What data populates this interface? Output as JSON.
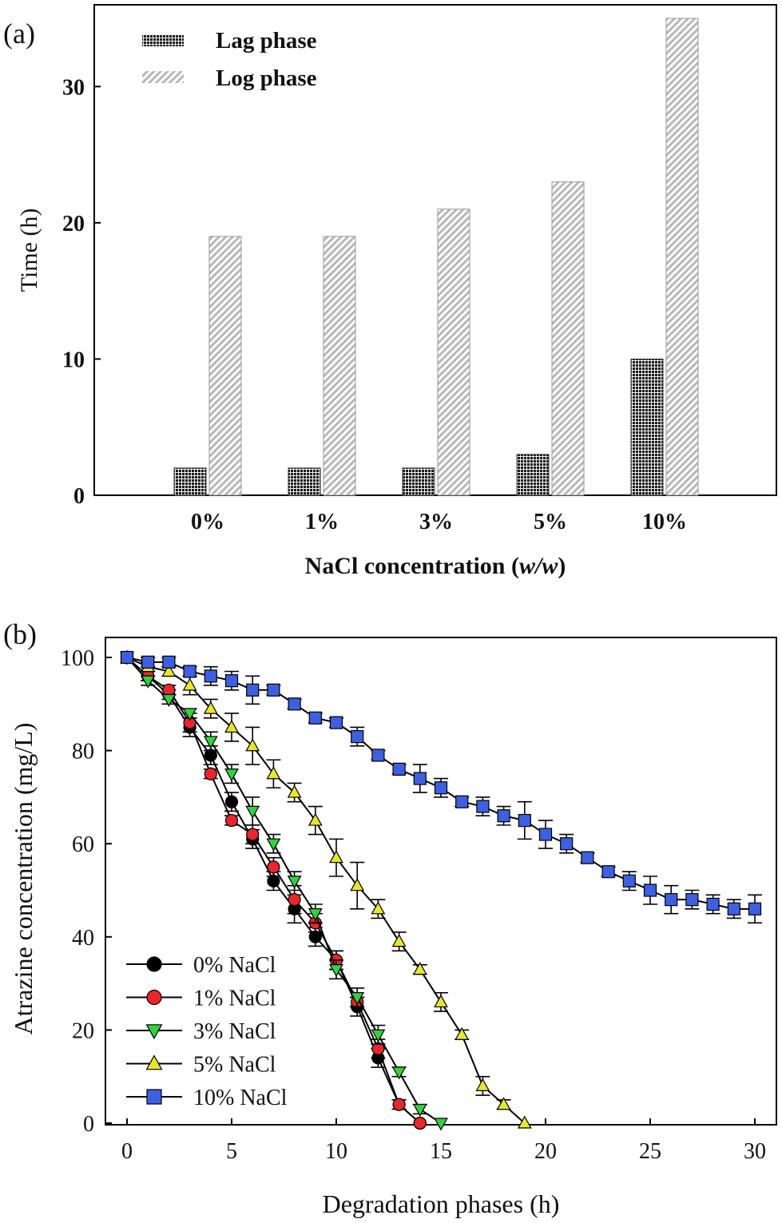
{
  "chart_data": [
    {
      "type": "bar",
      "panel_label": "(a)",
      "title": "",
      "xlabel_main": "NaCl concentration (",
      "xlabel_italic": "w/w",
      "xlabel_end": ")",
      "ylabel": "Time (h)",
      "categories": [
        "0%",
        "1%",
        "3%",
        "5%",
        "10%"
      ],
      "series": [
        {
          "name": "Lag phase",
          "values": [
            2,
            2,
            2,
            3,
            10
          ],
          "color": "#1a1a1a"
        },
        {
          "name": "Log phase",
          "values": [
            19,
            19,
            21,
            23,
            35
          ],
          "color": "#c8c8c8"
        }
      ],
      "ylim": [
        0,
        36
      ],
      "yticks": [
        "0",
        "10",
        "20",
        "30"
      ],
      "legend_position": "top-left"
    },
    {
      "type": "line",
      "panel_label": "(b)",
      "title": "",
      "xlabel": "Degradation phases (h)",
      "ylabel": "Atrazine concentration (mg/L)",
      "xlim": [
        -1,
        31
      ],
      "ylim": [
        0,
        104
      ],
      "xticks": [
        "0",
        "5",
        "10",
        "15",
        "20",
        "25",
        "30"
      ],
      "yticks": [
        "0",
        "20",
        "40",
        "60",
        "80",
        "100"
      ],
      "legend_position": "bottom-left",
      "series": [
        {
          "name": "0% NaCl",
          "marker": "circle",
          "color": "#000000",
          "x": [
            0,
            1,
            2,
            3,
            4,
            5,
            6,
            7,
            8,
            9,
            10,
            11,
            12,
            13,
            14
          ],
          "y": [
            100,
            96,
            92,
            85,
            79,
            69,
            61,
            52,
            46,
            40,
            35,
            25,
            14,
            4,
            0
          ],
          "err": [
            0,
            1,
            1,
            2,
            2,
            2,
            2,
            2,
            3,
            2,
            2,
            2,
            2,
            1,
            0
          ]
        },
        {
          "name": "1% NaCl",
          "marker": "circle",
          "color": "#e8262c",
          "x": [
            0,
            1,
            2,
            3,
            4,
            5,
            6,
            7,
            8,
            9,
            10,
            11,
            12,
            13,
            14
          ],
          "y": [
            100,
            96,
            93,
            86,
            75,
            65,
            62,
            55,
            48,
            43,
            35,
            26,
            16,
            4,
            0
          ],
          "err": [
            0,
            1,
            1,
            2,
            1,
            1,
            2,
            2,
            3,
            2,
            2,
            1,
            2,
            1,
            0
          ]
        },
        {
          "name": "3% NaCl",
          "marker": "triangle-down",
          "color": "#33d13c",
          "x": [
            0,
            1,
            2,
            3,
            4,
            5,
            6,
            7,
            8,
            9,
            10,
            11,
            12,
            13,
            14,
            15
          ],
          "y": [
            100,
            95,
            91,
            88,
            82,
            75,
            67,
            60,
            52,
            45,
            33,
            27,
            19,
            11,
            3,
            0
          ],
          "err": [
            0,
            1,
            1,
            1,
            2,
            2,
            3,
            2,
            2,
            2,
            2,
            2,
            2,
            1,
            1,
            0
          ]
        },
        {
          "name": "5% NaCl",
          "marker": "triangle-up",
          "color": "#e6e632",
          "x": [
            0,
            1,
            2,
            3,
            4,
            5,
            6,
            7,
            8,
            9,
            10,
            11,
            12,
            13,
            14,
            15,
            16,
            17,
            18,
            19
          ],
          "y": [
            100,
            98,
            97,
            94,
            89,
            85,
            81,
            75,
            71,
            65,
            57,
            51,
            46,
            39,
            33,
            26,
            19,
            8,
            4,
            0
          ],
          "err": [
            0,
            1,
            1,
            2,
            2,
            3,
            4,
            3,
            2,
            3,
            4,
            5,
            2,
            2,
            1,
            2,
            1,
            2,
            1,
            0
          ]
        },
        {
          "name": "10% NaCl",
          "marker": "square",
          "color": "#3d5fe0",
          "x": [
            0,
            1,
            2,
            3,
            4,
            5,
            6,
            7,
            8,
            9,
            10,
            11,
            12,
            13,
            14,
            15,
            16,
            17,
            18,
            19,
            20,
            21,
            22,
            23,
            24,
            25,
            26,
            27,
            28,
            29,
            30
          ],
          "y": [
            100,
            99,
            99,
            97,
            96,
            95,
            93,
            93,
            90,
            87,
            86,
            83,
            79,
            76,
            74,
            72,
            69,
            68,
            66,
            65,
            62,
            60,
            57,
            54,
            52,
            50,
            48,
            48,
            47,
            46,
            46
          ],
          "err": [
            0,
            1,
            1,
            1,
            2,
            2,
            3,
            1,
            1,
            1,
            1,
            2,
            1,
            1,
            3,
            2,
            1,
            2,
            2,
            4,
            3,
            2,
            1,
            1,
            2,
            3,
            3,
            2,
            2,
            2,
            3
          ]
        }
      ]
    }
  ]
}
